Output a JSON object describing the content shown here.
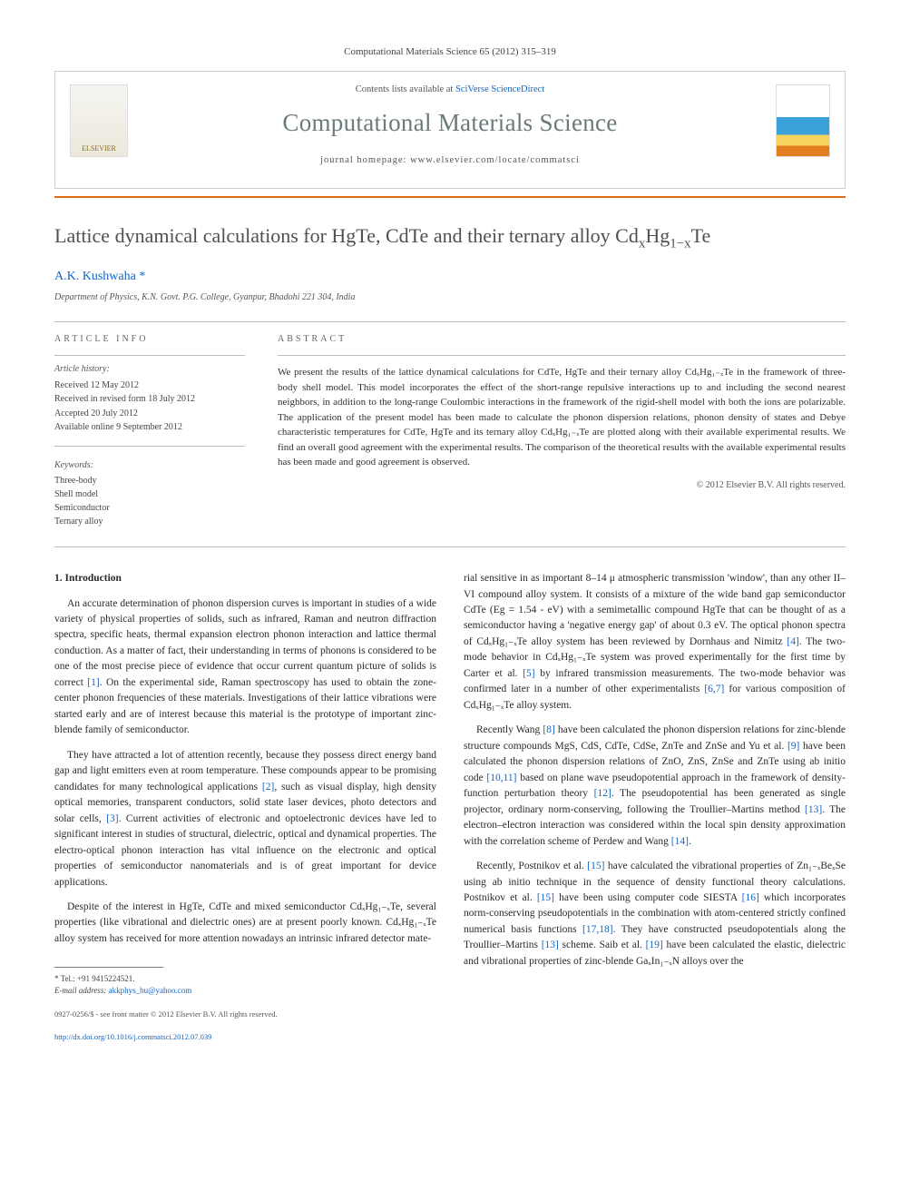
{
  "journal_ref": "Computational Materials Science 65 (2012) 315–319",
  "header": {
    "contents_pre": "Contents lists available at ",
    "contents_link": "SciVerse ScienceDirect",
    "journal_title": "Computational Materials Science",
    "homepage_pre": "journal homepage: ",
    "homepage_url": "www.elsevier.com/locate/commatsci",
    "publisher_label": "ELSEVIER"
  },
  "title_parts": {
    "t1": "Lattice dynamical calculations for HgTe, CdTe and their ternary alloy Cd",
    "t2": "x",
    "t3": "Hg",
    "t4": "1−x",
    "t5": "Te"
  },
  "author": "A.K. Kushwaha",
  "star": "*",
  "affiliation": "Department of Physics, K.N. Govt. P.G. College, Gyanpur, Bhadohi 221 304, India",
  "info_head": "ARTICLE INFO",
  "abstract_head": "ABSTRACT",
  "history_label": "Article history:",
  "history": [
    "Received 12 May 2012",
    "Received in revised form 18 July 2012",
    "Accepted 20 July 2012",
    "Available online 9 September 2012"
  ],
  "keywords_label": "Keywords:",
  "keywords": [
    "Three-body",
    "Shell model",
    "Semiconductor",
    "Ternary alloy"
  ],
  "abstract": "We present the results of the lattice dynamical calculations for CdTe, HgTe and their ternary alloy CdₓHg₁₋ₓTe in the framework of three-body shell model. This model incorporates the effect of the short-range repulsive interactions up to and including the second nearest neighbors, in addition to the long-range Coulombic interactions in the framework of the rigid-shell model with both the ions are polarizable. The application of the present model has been made to calculate the phonon dispersion relations, phonon density of states and Debye characteristic temperatures for CdTe, HgTe and its ternary alloy CdₓHg₁₋ₓTe are plotted along with their available experimental results. We find an overall good agreement with the experimental results. The comparison of the theoretical results with the available experimental results has been made and good agreement is observed.",
  "copyright": "© 2012 Elsevier B.V. All rights reserved.",
  "sec1": "1. Introduction",
  "col1": {
    "p1": "An accurate determination of phonon dispersion curves is important in studies of a wide variety of physical properties of solids, such as infrared, Raman and neutron diffraction spectra, specific heats, thermal expansion electron phonon interaction and lattice thermal conduction. As a matter of fact, their understanding in terms of phonons is considered to be one of the most precise piece of evidence that occur current quantum picture of solids is correct [1]. On the experimental side, Raman spectroscopy has used to obtain the zone-center phonon frequencies of these materials. Investigations of their lattice vibrations were started early and are of interest because this material is the prototype of important zinc-blende family of semiconductor.",
    "p2": "They have attracted a lot of attention recently, because they possess direct energy band gap and light emitters even at room temperature. These compounds appear to be promising candidates for many technological applications [2], such as visual display, high density optical memories, transparent conductors, solid state laser devices, photo detectors and solar cells, [3]. Current activities of electronic and optoelectronic devices have led to significant interest in studies of structural, dielectric, optical and dynamical properties. The electro-optical phonon interaction has vital influence on the electronic and optical properties of semiconductor nanomaterials and is of great important for device applications.",
    "p3": "Despite of the interest in HgTe, CdTe and mixed semiconductor CdₓHg₁₋ₓTe, several properties (like vibrational and dielectric ones) are at present poorly known. CdₓHg₁₋ₓTe alloy system has received for more attention nowadays an intrinsic infrared detector mate-"
  },
  "col2": {
    "p1": "rial sensitive in as important 8–14 μ atmospheric transmission 'window', than any other II–VI compound alloy system. It consists of a mixture of the wide band gap semiconductor CdTe (Eg = 1.54 - eV) with a semimetallic compound HgTe that can be thought of as a semiconductor having a 'negative energy gap' of about 0.3 eV. The optical phonon spectra of CdₓHg₁₋ₓTe alloy system has been reviewed by Dornhaus and Nimitz [4]. The two-mode behavior in CdₓHg₁₋ₓTe system was proved experimentally for the first time by Carter et al. [5] by infrared transmission measurements. The two-mode behavior was confirmed later in a number of other experimentalists [6,7] for various composition of CdₓHg₁₋ₓTe alloy system.",
    "p2": "Recently Wang [8] have been calculated the phonon dispersion relations for zinc-blende structure compounds MgS, CdS, CdTe, CdSe, ZnTe and ZnSe and Yu et al. [9] have been calculated the phonon dispersion relations of ZnO, ZnS, ZnSe and ZnTe using ab initio code [10,11] based on plane wave pseudopotential approach in the framework of density-function perturbation theory [12]. The pseudopotential has been generated as single projector, ordinary norm-conserving, following the Troullier–Martins method [13]. The electron–electron interaction was considered within the local spin density approximation with the correlation scheme of Perdew and Wang [14].",
    "p3": "Recently, Postnikov et al. [15] have calculated the vibrational properties of Zn₁₋ₓBeₓSe using ab initio technique in the sequence of density functional theory calculations. Postnikov et al. [15] have been using computer code SIESTA [16] which incorporates norm-conserving pseudopotentials in the combination with atom-centered strictly confined numerical basis functions [17,18]. They have constructed pseudopotentials along the Troullier–Martins [13] scheme. Saib et al. [19] have been calculated the elastic, dielectric and vibrational properties of zinc-blende GaₓIn₁₋ₓN alloys over the"
  },
  "footnote_tel": "* Tel.: +91 9415224521.",
  "footnote_email_label": "E-mail address: ",
  "footnote_email": "akkphys_bu@yahoo.com",
  "bottom": {
    "line1": "0927-0256/$ - see front matter © 2012 Elsevier B.V. All rights reserved.",
    "line2": "http://dx.doi.org/10.1016/j.commatsci.2012.07.039"
  }
}
